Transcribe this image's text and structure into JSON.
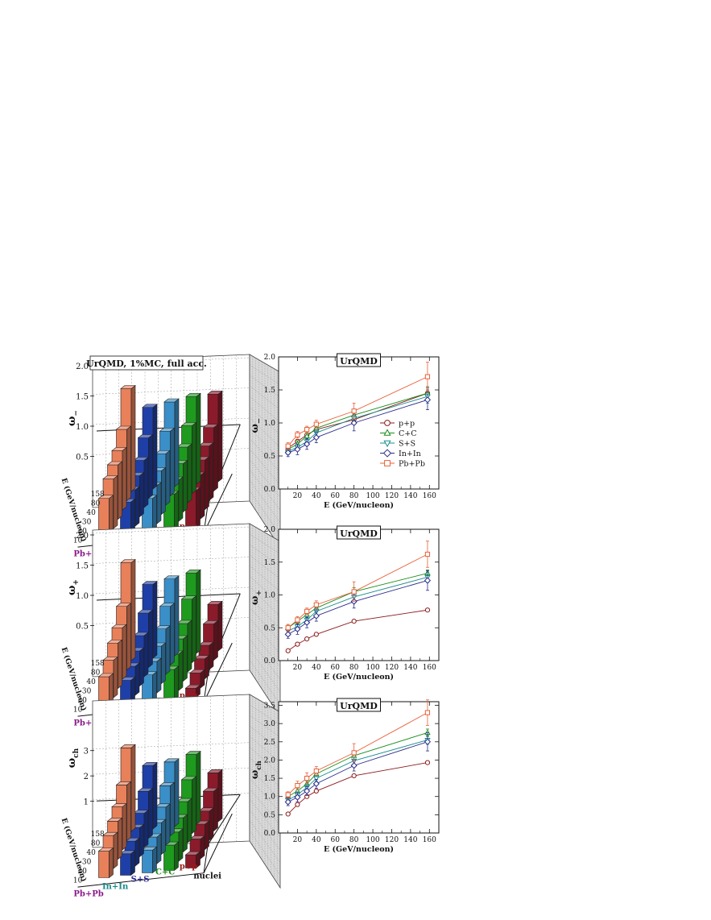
{
  "left_panels": [
    {
      "title": "UrQMD, 1%MC, full acc.",
      "zlabel": "ω−",
      "zlabel_sub": "−",
      "zticks": [
        "0.5",
        "1.0",
        "1.5",
        "2.0"
      ],
      "zmax": 2.0,
      "energy_axis_label": "E (GeV/nucleon)",
      "energy_ticks": [
        "10",
        "20",
        "30",
        "40",
        "80",
        "158"
      ],
      "systems": [
        "Pb+Pb",
        "In+In",
        "S+S",
        "C+C",
        "p+p"
      ],
      "depth_label": "nuclei",
      "values": {
        "Pb+Pb": [
          0.65,
          0.82,
          0.9,
          0.98,
          1.18,
          1.7
        ],
        "In+In": [
          0.55,
          0.6,
          0.68,
          0.78,
          1.0,
          1.35
        ],
        "S+S": [
          0.57,
          0.63,
          0.72,
          0.85,
          1.07,
          1.4
        ],
        "C+C": [
          0.6,
          0.68,
          0.8,
          0.92,
          1.12,
          1.45
        ],
        "p+p": [
          0.62,
          0.72,
          0.82,
          0.9,
          1.05,
          1.45
        ]
      }
    },
    {
      "title": "",
      "zlabel": "ω+",
      "zlabel_sub": "+",
      "zticks": [
        "0.5",
        "1.0",
        "1.5",
        "2.0"
      ],
      "zmax": 2.0,
      "energy_axis_label": "E (GeV/nucleon)",
      "energy_ticks": [
        "10",
        "20",
        "30",
        "40",
        "80",
        "158"
      ],
      "systems": [
        "Pb+Pb",
        "In+In",
        "S+S",
        "C+C",
        "p+p"
      ],
      "depth_label": "nuclei",
      "values": {
        "Pb+Pb": [
          0.5,
          0.62,
          0.75,
          0.85,
          1.05,
          1.62
        ],
        "In+In": [
          0.4,
          0.48,
          0.58,
          0.68,
          0.9,
          1.22
        ],
        "S+S": [
          0.45,
          0.52,
          0.62,
          0.75,
          0.97,
          1.27
        ],
        "C+C": [
          0.5,
          0.6,
          0.7,
          0.8,
          1.05,
          1.33
        ],
        "p+p": [
          0.15,
          0.25,
          0.33,
          0.4,
          0.6,
          0.77
        ]
      }
    },
    {
      "title": "",
      "zlabel": "ωch",
      "zlabel_sub": "ch",
      "zticks": [
        "1",
        "2",
        "3"
      ],
      "zmax": 3.5,
      "energy_axis_label": "E (GeV/nucleon)",
      "energy_ticks": [
        "10",
        "20",
        "30",
        "40",
        "80",
        "158"
      ],
      "systems": [
        "Pb+Pb",
        "In+In",
        "S+S",
        "C+C",
        "p+p"
      ],
      "depth_label": "nuclei",
      "values": {
        "Pb+Pb": [
          1.05,
          1.3,
          1.5,
          1.7,
          2.2,
          3.3
        ],
        "In+In": [
          0.85,
          0.98,
          1.15,
          1.35,
          1.85,
          2.5
        ],
        "S+S": [
          0.9,
          1.05,
          1.25,
          1.5,
          1.98,
          2.55
        ],
        "C+C": [
          1.0,
          1.15,
          1.35,
          1.62,
          2.12,
          2.75
        ],
        "p+p": [
          0.52,
          0.78,
          1.0,
          1.15,
          1.57,
          1.93
        ]
      }
    }
  ],
  "chart_data": [
    {
      "type": "line",
      "title": "UrQMD",
      "xlabel": "E (GeV/nucleon)",
      "ylabel": "ω−",
      "ylabel_sub": "−",
      "xlim": [
        0,
        170
      ],
      "ylim": [
        0,
        2.0
      ],
      "xticks": [
        20,
        40,
        60,
        80,
        100,
        120,
        140,
        160
      ],
      "yticks": [
        0.0,
        0.5,
        1.0,
        1.5,
        2.0
      ],
      "ytick_labels": [
        "0.0",
        "0.5",
        "1.0",
        "1.5",
        "2.0"
      ],
      "legend_position": "right",
      "x": [
        10,
        20,
        30,
        40,
        80,
        158
      ],
      "series": [
        {
          "name": "p+p",
          "color": "#8b1a1a",
          "marker": "circle",
          "values": [
            0.62,
            0.72,
            0.82,
            0.9,
            1.05,
            1.45
          ],
          "err": [
            0.03,
            0.03,
            0.03,
            0.03,
            0.05,
            0.08
          ]
        },
        {
          "name": "C+C",
          "color": "#1a8c1a",
          "marker": "triangle-up",
          "values": [
            0.6,
            0.68,
            0.8,
            0.92,
            1.12,
            1.45
          ],
          "err": [
            0.05,
            0.05,
            0.05,
            0.05,
            0.08,
            0.1
          ]
        },
        {
          "name": "S+S",
          "color": "#1a8c8c",
          "marker": "triangle-down",
          "values": [
            0.57,
            0.63,
            0.72,
            0.85,
            1.07,
            1.4
          ],
          "err": [
            0.05,
            0.05,
            0.05,
            0.05,
            0.08,
            0.1
          ]
        },
        {
          "name": "In+In",
          "color": "#2a2a8c",
          "marker": "diamond",
          "values": [
            0.55,
            0.6,
            0.68,
            0.78,
            1.0,
            1.35
          ],
          "err": [
            0.06,
            0.08,
            0.08,
            0.08,
            0.12,
            0.15
          ]
        },
        {
          "name": "Pb+Pb",
          "color": "#e8603a",
          "marker": "square",
          "values": [
            0.65,
            0.82,
            0.9,
            0.98,
            1.18,
            1.7
          ],
          "err": [
            0.05,
            0.05,
            0.05,
            0.06,
            0.12,
            0.22
          ]
        }
      ]
    },
    {
      "type": "line",
      "title": "UrQMD",
      "xlabel": "E (GeV/nucleon)",
      "ylabel": "ω+",
      "ylabel_sub": "+",
      "xlim": [
        0,
        170
      ],
      "ylim": [
        0,
        2.0
      ],
      "xticks": [
        20,
        40,
        60,
        80,
        100,
        120,
        140,
        160
      ],
      "yticks": [
        0.0,
        0.5,
        1.0,
        1.5,
        2.0
      ],
      "ytick_labels": [
        "0.0",
        "0.5",
        "1.0",
        "1.5",
        "2.0"
      ],
      "x": [
        10,
        20,
        30,
        40,
        80,
        158
      ],
      "series": [
        {
          "name": "p+p",
          "color": "#8b1a1a",
          "marker": "circle",
          "values": [
            0.15,
            0.25,
            0.33,
            0.4,
            0.6,
            0.77
          ],
          "err": [
            0.01,
            0.01,
            0.01,
            0.02,
            0.02,
            0.02
          ]
        },
        {
          "name": "C+C",
          "color": "#1a8c1a",
          "marker": "triangle-up",
          "values": [
            0.5,
            0.6,
            0.7,
            0.8,
            1.05,
            1.33
          ],
          "err": [
            0.05,
            0.05,
            0.05,
            0.05,
            0.06,
            0.05
          ]
        },
        {
          "name": "S+S",
          "color": "#1a8c8c",
          "marker": "triangle-down",
          "values": [
            0.45,
            0.52,
            0.62,
            0.75,
            0.97,
            1.27
          ],
          "err": [
            0.05,
            0.05,
            0.05,
            0.05,
            0.06,
            0.08
          ]
        },
        {
          "name": "In+In",
          "color": "#2a2a8c",
          "marker": "diamond",
          "values": [
            0.4,
            0.48,
            0.58,
            0.68,
            0.9,
            1.22
          ],
          "err": [
            0.06,
            0.08,
            0.08,
            0.08,
            0.1,
            0.15
          ]
        },
        {
          "name": "Pb+Pb",
          "color": "#e8603a",
          "marker": "square",
          "values": [
            0.5,
            0.62,
            0.75,
            0.85,
            1.05,
            1.62
          ],
          "err": [
            0.05,
            0.05,
            0.05,
            0.06,
            0.15,
            0.2
          ]
        }
      ]
    },
    {
      "type": "line",
      "title": "UrQMD",
      "xlabel": "E (GeV/nucleon)",
      "ylabel": "ωch",
      "ylabel_sub": "ch",
      "xlim": [
        0,
        170
      ],
      "ylim": [
        0,
        3.6
      ],
      "xticks": [
        20,
        40,
        60,
        80,
        100,
        120,
        140,
        160
      ],
      "yticks": [
        0.0,
        0.5,
        1.0,
        1.5,
        2.0,
        2.5,
        3.0,
        3.5
      ],
      "ytick_labels": [
        "0.0",
        "0.5",
        "1.0",
        "1.5",
        "2.0",
        "2.5",
        "3.0",
        "3.5"
      ],
      "x": [
        10,
        20,
        30,
        40,
        80,
        158
      ],
      "series": [
        {
          "name": "p+p",
          "color": "#8b1a1a",
          "marker": "circle",
          "values": [
            0.52,
            0.78,
            1.0,
            1.15,
            1.57,
            1.93
          ],
          "err": [
            0.02,
            0.02,
            0.02,
            0.02,
            0.03,
            0.03
          ]
        },
        {
          "name": "C+C",
          "color": "#1a8c1a",
          "marker": "triangle-up",
          "values": [
            1.0,
            1.15,
            1.35,
            1.62,
            2.12,
            2.75
          ],
          "err": [
            0.08,
            0.08,
            0.08,
            0.08,
            0.1,
            0.1
          ]
        },
        {
          "name": "S+S",
          "color": "#1a8c8c",
          "marker": "triangle-down",
          "values": [
            0.9,
            1.05,
            1.25,
            1.5,
            1.98,
            2.55
          ],
          "err": [
            0.08,
            0.08,
            0.08,
            0.08,
            0.1,
            0.12
          ]
        },
        {
          "name": "In+In",
          "color": "#2a2a8c",
          "marker": "diamond",
          "values": [
            0.85,
            0.98,
            1.15,
            1.35,
            1.85,
            2.5
          ],
          "err": [
            0.1,
            0.12,
            0.12,
            0.12,
            0.15,
            0.25
          ]
        },
        {
          "name": "Pb+Pb",
          "color": "#e8603a",
          "marker": "square",
          "values": [
            1.05,
            1.3,
            1.5,
            1.7,
            2.2,
            3.3
          ],
          "err": [
            0.08,
            0.12,
            0.15,
            0.12,
            0.25,
            0.35
          ]
        }
      ]
    }
  ],
  "colors": {
    "Pb+Pb": "#e8805a",
    "In+In": "#1f3fa8",
    "S+S": "#3a8fc8",
    "C+C": "#1e9a1e",
    "p+p": "#8b1a2a",
    "label_Pb+Pb": "#8a1a8a",
    "label_In+In": "#1a8a8a",
    "label_S+S": "#2a2a9a",
    "label_C+C": "#1a8a1a",
    "label_p+p": "#9a1a1a"
  }
}
